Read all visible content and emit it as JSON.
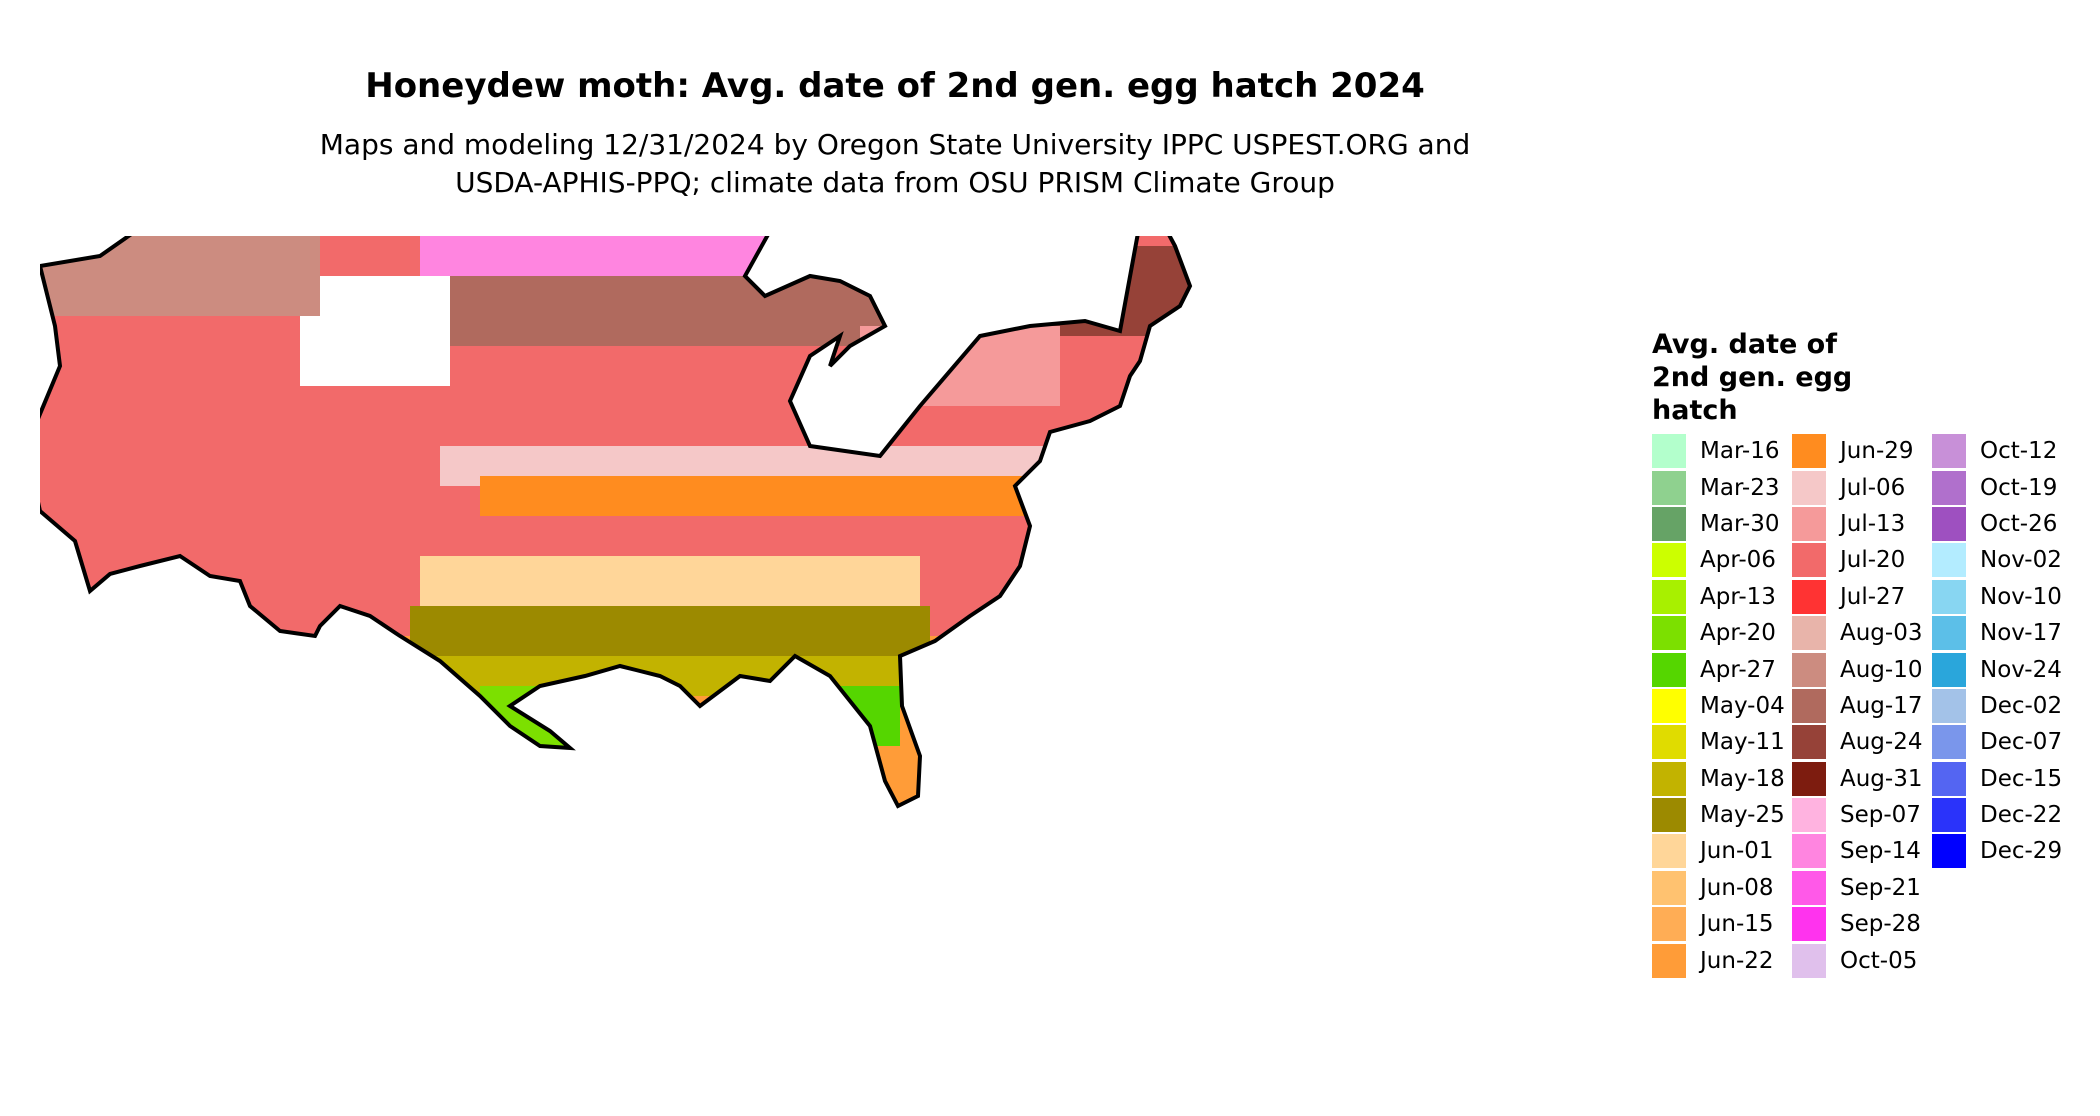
{
  "title": "Honeydew moth: Avg. date of 2nd gen. egg hatch 2024",
  "subtitle": {
    "line1": "Maps and modeling 12/31/2024 by Oregon State University IPPC USPEST.ORG and",
    "line2": "USDA-APHIS-PPQ; climate data from OSU PRISM Climate Group"
  },
  "legend": {
    "title_lines": [
      "Avg. date of",
      "2nd gen. egg",
      "hatch"
    ],
    "items": [
      {
        "label": "Mar-16",
        "color": "#b3ffcc"
      },
      {
        "label": "Mar-23",
        "color": "#8fd18f"
      },
      {
        "label": "Mar-30",
        "color": "#66a366"
      },
      {
        "label": "Apr-06",
        "color": "#ccff00"
      },
      {
        "label": "Apr-13",
        "color": "#a8f000"
      },
      {
        "label": "Apr-20",
        "color": "#7ce000"
      },
      {
        "label": "Apr-27",
        "color": "#55d600"
      },
      {
        "label": "May-04",
        "color": "#ffff00"
      },
      {
        "label": "May-11",
        "color": "#e0dc00"
      },
      {
        "label": "May-18",
        "color": "#c2b300"
      },
      {
        "label": "May-25",
        "color": "#9c8a00"
      },
      {
        "label": "Jun-01",
        "color": "#ffd699"
      },
      {
        "label": "Jun-08",
        "color": "#ffc270"
      },
      {
        "label": "Jun-15",
        "color": "#ffad55"
      },
      {
        "label": "Jun-22",
        "color": "#ff9c38"
      },
      {
        "label": "Jun-29",
        "color": "#ff8c1f"
      },
      {
        "label": "Jul-06",
        "color": "#f5c8c8"
      },
      {
        "label": "Jul-13",
        "color": "#f59a9a"
      },
      {
        "label": "Jul-20",
        "color": "#f26a6a"
      },
      {
        "label": "Jul-27",
        "color": "#ff3333"
      },
      {
        "label": "Aug-03",
        "color": "#e8b4aa"
      },
      {
        "label": "Aug-10",
        "color": "#cc8c80"
      },
      {
        "label": "Aug-17",
        "color": "#b06a5e"
      },
      {
        "label": "Aug-24",
        "color": "#964238"
      },
      {
        "label": "Aug-31",
        "color": "#7d1c0f"
      },
      {
        "label": "Sep-07",
        "color": "#ffb3e0"
      },
      {
        "label": "Sep-14",
        "color": "#ff85e0"
      },
      {
        "label": "Sep-21",
        "color": "#ff59e8"
      },
      {
        "label": "Sep-28",
        "color": "#ff33ee"
      },
      {
        "label": "Oct-05",
        "color": "#e0c0ec"
      },
      {
        "label": "Oct-12",
        "color": "#c890d8"
      },
      {
        "label": "Oct-19",
        "color": "#b070cc"
      },
      {
        "label": "Oct-26",
        "color": "#9e50c0"
      },
      {
        "label": "Nov-02",
        "color": "#b3ecff"
      },
      {
        "label": "Nov-10",
        "color": "#88d6f2"
      },
      {
        "label": "Nov-17",
        "color": "#5cbfe8"
      },
      {
        "label": "Nov-24",
        "color": "#2aa6db"
      },
      {
        "label": "Dec-02",
        "color": "#a3c2e8"
      },
      {
        "label": "Dec-07",
        "color": "#7a96eb"
      },
      {
        "label": "Dec-15",
        "color": "#5465f2"
      },
      {
        "label": "Dec-22",
        "color": "#2a33fa"
      },
      {
        "label": "Dec-29",
        "color": "#0000ff"
      }
    ]
  }
}
